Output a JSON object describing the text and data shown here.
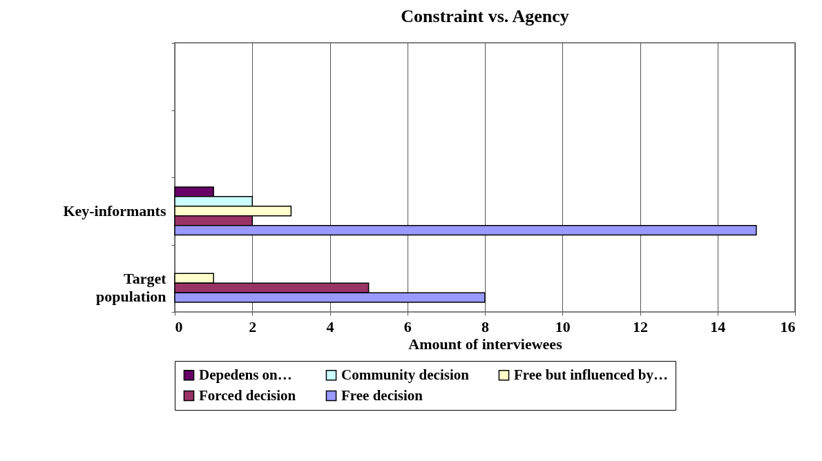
{
  "chart_data": {
    "type": "bar",
    "orientation": "horizontal",
    "title": "Constraint vs. Agency",
    "xlabel": "Amount of interviewees",
    "categories": [
      null,
      null,
      "Key-informants",
      "Target population"
    ],
    "series": [
      {
        "name": "Depedens on…",
        "color": "#660066",
        "values": [
          null,
          null,
          1,
          null
        ]
      },
      {
        "name": "Community decision",
        "color": "#ccffff",
        "values": [
          null,
          null,
          2,
          null
        ]
      },
      {
        "name": "Free but influenced by…",
        "color": "#ffffcc",
        "values": [
          null,
          null,
          3,
          1
        ]
      },
      {
        "name": "Forced decision",
        "color": "#993366",
        "values": [
          null,
          null,
          2,
          5
        ]
      },
      {
        "name": "Free decision",
        "color": "#9999ff",
        "values": [
          null,
          null,
          15,
          8
        ]
      }
    ],
    "xlim": [
      0,
      16
    ],
    "xticks": [
      0,
      2,
      4,
      6,
      8,
      10,
      12,
      14,
      16
    ],
    "grid": "x",
    "legend": "bottom"
  }
}
